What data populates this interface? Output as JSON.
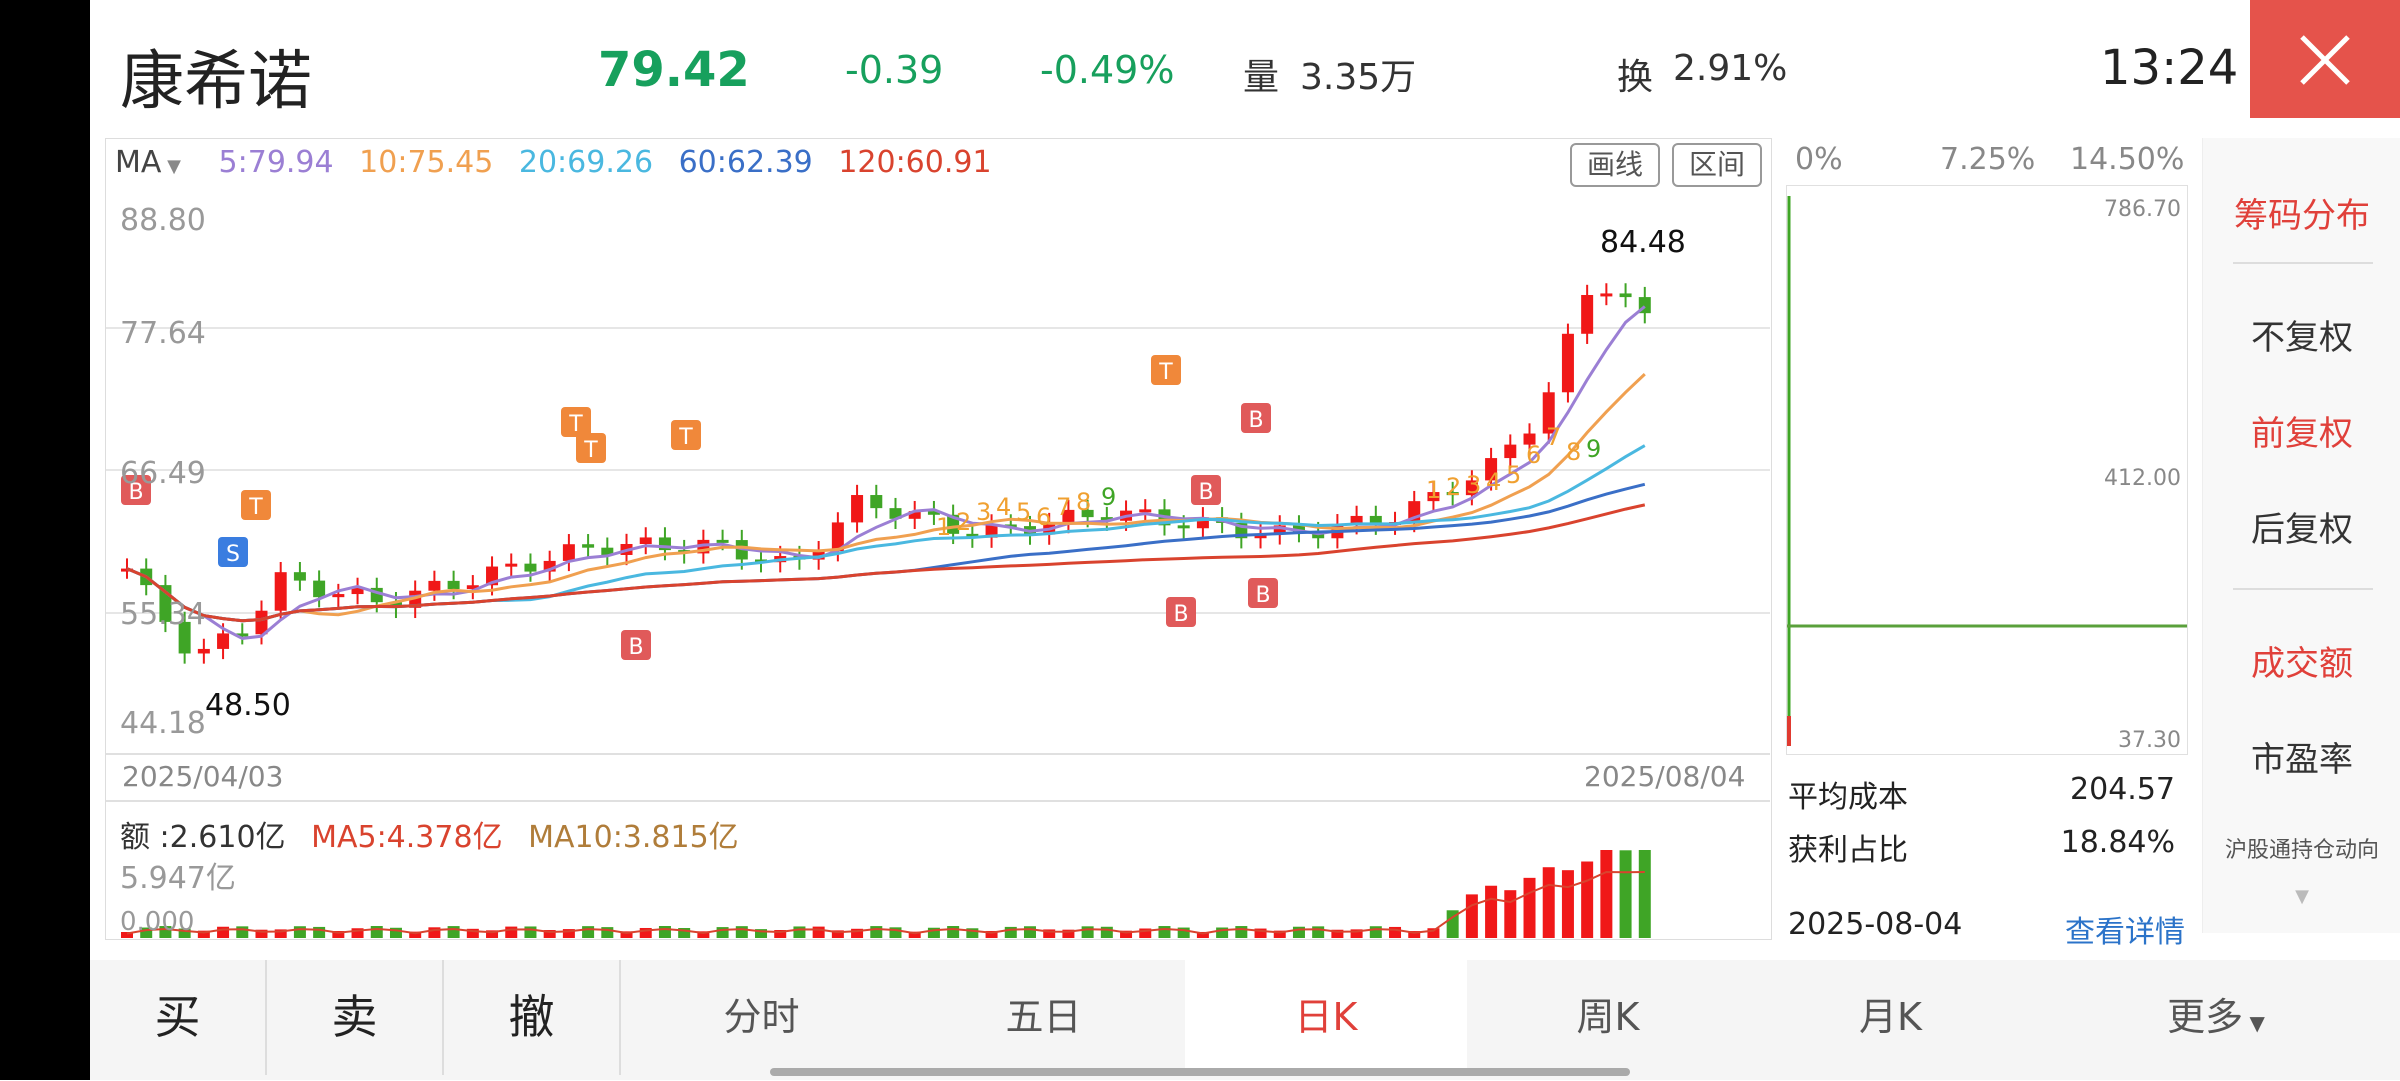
{
  "header": {
    "stock_name": "康希诺",
    "price": "79.42",
    "change": "-0.39",
    "change_pct": "-0.49%",
    "volume_label": "量",
    "volume": "3.35万",
    "turnover_label": "换",
    "turnover": "2.91%",
    "clock": "13:24",
    "close_icon": "close-icon"
  },
  "ma_bar": {
    "selector": "MA",
    "items": [
      {
        "text": "5:79.94",
        "color": "#9b7fd4"
      },
      {
        "text": "10:75.45",
        "color": "#f0a050"
      },
      {
        "text": "20:69.26",
        "color": "#4ab8e0"
      },
      {
        "text": "60:62.39",
        "color": "#3a6fc7"
      },
      {
        "text": "120:60.91",
        "color": "#d9432e"
      }
    ],
    "draw_line": "画线",
    "range": "区间"
  },
  "kline": {
    "y_labels": [
      "88.80",
      "77.64",
      "66.49",
      "55.34",
      "44.18"
    ],
    "max_label": "84.48",
    "min_label": "48.50",
    "start_date": "2025/04/03",
    "end_date": "2025/08/04",
    "signals": [
      "B",
      "S",
      "T"
    ],
    "sequence": [
      "1",
      "2",
      "3",
      "4",
      "5",
      "6",
      "7",
      "8",
      "9"
    ]
  },
  "amount": {
    "label": "额 :2.610亿",
    "ma5": "MA5:4.378亿",
    "ma10": "MA10:3.815亿",
    "max": "5.947亿",
    "zero": "0.000"
  },
  "chip": {
    "pct_labels": [
      "0%",
      "7.25%",
      "14.50%"
    ],
    "price_labels": [
      "786.70",
      "412.00",
      "37.30"
    ],
    "avg_cost_label": "平均成本",
    "avg_cost": "204.57",
    "profit_label": "获利占比",
    "profit": "18.84%",
    "date": "2025-08-04",
    "detail_link": "查看详情"
  },
  "right_menu": {
    "chip_dist": "筹码分布",
    "no_adj": "不复权",
    "fwd_adj": "前复权",
    "back_adj": "后复权",
    "amount": "成交额",
    "pe": "市盈率",
    "hk_connect": "沪股通持仓动向"
  },
  "bottom": {
    "buy": "买",
    "sell": "卖",
    "cancel": "撤",
    "tabs": [
      "分时",
      "五日",
      "日K",
      "周K",
      "月K"
    ],
    "more": "更多"
  },
  "colors": {
    "up": "#f01818",
    "down": "#3fa526",
    "green_text": "#17a05d",
    "accent": "#e0403a"
  }
}
